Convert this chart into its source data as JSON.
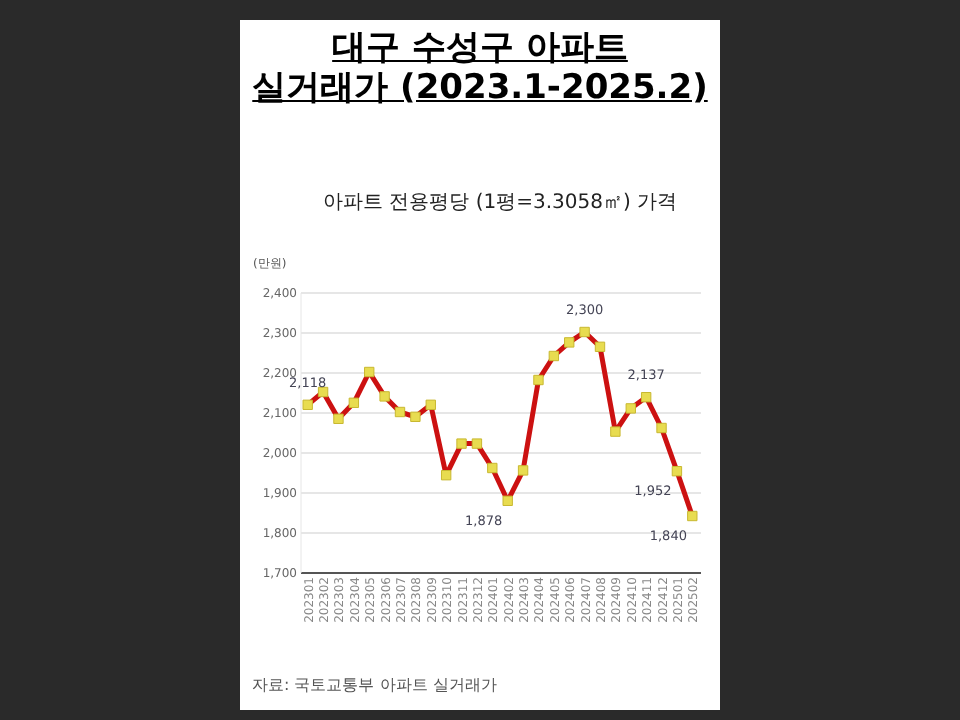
{
  "chart_data": {
    "type": "line",
    "title": "대구 수성구 아파트\n실거래가 (2023.1-2025.2)",
    "subtitle": "아파트 전용평당 (1평=3.3058㎡) 가격",
    "ylabel": "(만원)",
    "annotations": [
      "자료: 국토교통부 아파트 실거래가"
    ],
    "categories": [
      "202301",
      "202302",
      "202303",
      "202304",
      "202305",
      "202306",
      "202307",
      "202308",
      "202309",
      "202310",
      "202311",
      "202312",
      "202401",
      "202402",
      "202403",
      "202404",
      "202405",
      "202406",
      "202407",
      "202408",
      "202409",
      "202410",
      "202411",
      "202412",
      "202501",
      "202502"
    ],
    "series": [
      {
        "color": "#cc1111",
        "values": [
          2118,
          2150,
          2083,
          2123,
          2200,
          2139,
          2100,
          2088,
          2118,
          1942,
          2021,
          2021,
          1960,
          1878,
          1954,
          2180,
          2240,
          2274,
          2300,
          2263,
          2051,
          2109,
          2137,
          2060,
          1952,
          1840
        ],
        "value_labels": [
          "2,118",
          null,
          null,
          null,
          null,
          null,
          null,
          null,
          null,
          null,
          null,
          null,
          null,
          "1,878",
          null,
          null,
          null,
          null,
          "2,300",
          null,
          null,
          null,
          "2,137",
          null,
          "1,952",
          "1,840"
        ]
      }
    ],
    "ylim": [
      1700,
      2400
    ],
    "yticks": [
      {
        "value": 1700,
        "label": "1,700"
      },
      {
        "value": 1800,
        "label": "1,800"
      },
      {
        "value": 1900,
        "label": "1,900"
      },
      {
        "value": 2000,
        "label": "2,000"
      },
      {
        "value": 2100,
        "label": "2,100"
      },
      {
        "value": 2200,
        "label": "2,200"
      },
      {
        "value": 2300,
        "label": "2,300"
      },
      {
        "value": 2400,
        "label": "2,400"
      }
    ],
    "grid": "y",
    "marker": "square",
    "line_style": "solid"
  }
}
